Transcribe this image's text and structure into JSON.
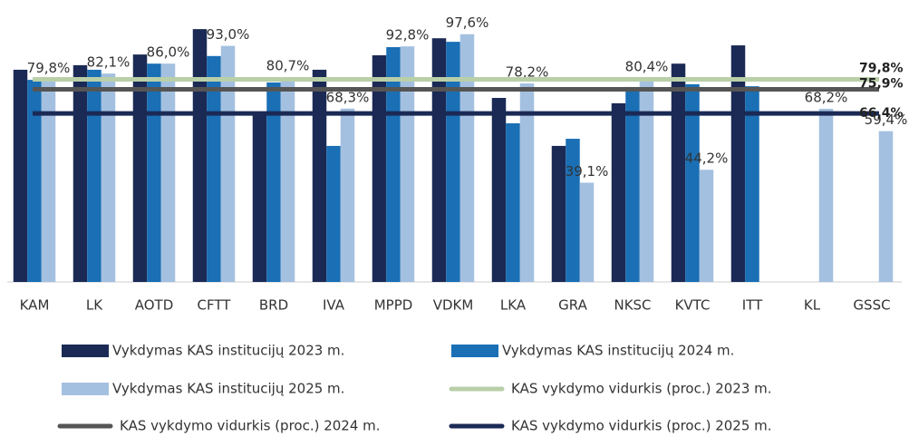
{
  "chart_data": {
    "type": "bar",
    "categories": [
      "KAM",
      "LK",
      "AOTD",
      "CFTT",
      "BRD",
      "IVA",
      "MPPD",
      "VDKM",
      "LKA",
      "GRA",
      "NKSC",
      "KVTC",
      "ITT",
      "KL",
      "GSSC"
    ],
    "series": [
      {
        "name": "Vykdymas KAS institucijų 2023 m.",
        "color": "#1b2a55",
        "values": [
          83.6,
          85.4,
          89.6,
          99.6,
          66,
          83.6,
          89.3,
          96,
          72.5,
          53.6,
          70.4,
          86,
          93.2,
          null,
          null
        ]
      },
      {
        "name": "Vykdymas KAS institucijų 2024 m.",
        "color": "#1a6fb5",
        "values": [
          79.6,
          83.6,
          86,
          89,
          78.6,
          53.6,
          92.5,
          94.6,
          62.5,
          56.4,
          76.8,
          77.9,
          77.1,
          null,
          null
        ]
      },
      {
        "name": "Vykdymas KAS institucijų 2025 m.",
        "color": "#a4c0e0",
        "values": [
          79.8,
          82.1,
          86.0,
          93.0,
          80.7,
          68.3,
          92.8,
          97.6,
          78.2,
          39.1,
          80.4,
          44.2,
          null,
          68.2,
          59.4
        ],
        "value_labels": [
          "79,8%",
          "82,1%",
          "86,0%",
          "93,0%",
          "80,7%",
          "68,3%",
          "92,8%",
          "97,6%",
          "78,2%",
          "39,1%",
          "80,4%",
          "44,2%",
          null,
          "68,2%",
          "59,4%"
        ]
      }
    ],
    "lines": [
      {
        "name": "KAS vykdymo vidurkis (proc.) 2023 m.",
        "color": "#b9cfa8",
        "value": 79.8,
        "value_label": "79,8%"
      },
      {
        "name": "KAS vykdymo vidurkis (proc.) 2024 m.",
        "color": "#555555",
        "value": 75.9,
        "value_label": "75,9%"
      },
      {
        "name": "KAS vykdymo vidurkis (proc.) 2025 m.",
        "color": "#1b2a55",
        "value": 66.4,
        "value_label": "66,4%"
      }
    ]
  }
}
